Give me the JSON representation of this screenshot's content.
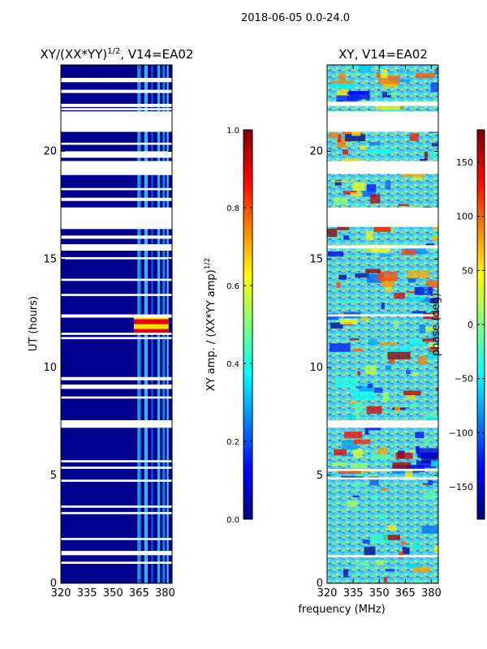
{
  "figure": {
    "suptitle": "2018-06-05 0.0-24.0",
    "xlabel": "frequency (MHz)",
    "ylabel": "UT (hours)"
  },
  "chart_data": [
    {
      "type": "heatmap",
      "title_main": "XY/(XX*YY)",
      "title_sup": "1/2",
      "title_rest": ", V14=EA02",
      "xlim": [
        320,
        384
      ],
      "ylim": [
        0,
        24
      ],
      "xticks": [
        320,
        335,
        350,
        365,
        380
      ],
      "yticks": [
        0,
        5,
        10,
        15,
        20
      ],
      "colorbar": {
        "label_main": "XY amp. / (XX*YY amp)",
        "label_sup": "1/2",
        "range": [
          0.0,
          1.0
        ],
        "ticks": [
          "0.0",
          "0.2",
          "0.4",
          "0.6",
          "0.8",
          "1.0"
        ],
        "tick_values": [
          0.0,
          0.2,
          0.4,
          0.6,
          0.8,
          1.0
        ]
      },
      "gap_bands_hours": [
        [
          23.2,
          23.4
        ],
        [
          22.7,
          22.85
        ],
        [
          22.05,
          22.2
        ],
        [
          21.9,
          22.0
        ],
        [
          20.9,
          21.85
        ],
        [
          20.3,
          20.4
        ],
        [
          19.7,
          20.0
        ],
        [
          18.9,
          19.55
        ],
        [
          18.2,
          18.3
        ],
        [
          17.7,
          17.85
        ],
        [
          16.4,
          17.4
        ],
        [
          15.95,
          16.1
        ],
        [
          15.4,
          15.7
        ],
        [
          15.0,
          15.1
        ],
        [
          14.0,
          14.1
        ],
        [
          13.3,
          13.4
        ],
        [
          12.3,
          12.45
        ],
        [
          11.5,
          11.6
        ],
        [
          11.3,
          11.4
        ],
        [
          9.4,
          9.55
        ],
        [
          9.0,
          9.2
        ],
        [
          8.55,
          8.65
        ],
        [
          7.2,
          7.55
        ],
        [
          5.6,
          5.7
        ],
        [
          5.3,
          5.4
        ],
        [
          4.7,
          4.8
        ],
        [
          3.5,
          3.6
        ],
        [
          3.2,
          3.3
        ],
        [
          2.0,
          2.1
        ],
        [
          1.3,
          1.5
        ],
        [
          0.9,
          1.0
        ]
      ],
      "bright_channel_columns_mhz": [
        [
          364,
          366
        ],
        [
          368,
          370
        ],
        [
          372,
          373
        ],
        [
          375.5,
          377
        ],
        [
          378.5,
          380
        ],
        [
          381,
          382
        ]
      ],
      "high_amplitude_region": {
        "x": [
          362,
          382
        ],
        "y": [
          11.55,
          12.45
        ],
        "value": 0.9
      }
    },
    {
      "type": "heatmap",
      "title": "XY, V14=EA02",
      "xlim": [
        320,
        384
      ],
      "ylim": [
        0,
        24
      ],
      "xticks": [
        320,
        335,
        350,
        365,
        380
      ],
      "yticks": [
        0,
        5,
        10,
        15,
        20
      ],
      "colorbar": {
        "label": "phase (deg)",
        "range": [
          -180,
          180
        ],
        "ticks": [
          "−150",
          "−100",
          "−50",
          "0",
          "50",
          "100",
          "150"
        ],
        "tick_values": [
          -150,
          -100,
          -50,
          0,
          50,
          100,
          150
        ]
      },
      "gap_bands_hours": [
        [
          22.1,
          22.3
        ],
        [
          20.9,
          21.85
        ],
        [
          18.95,
          19.55
        ],
        [
          16.5,
          17.4
        ],
        [
          15.5,
          15.65
        ],
        [
          12.35,
          12.45
        ],
        [
          7.2,
          7.55
        ],
        [
          5.2,
          5.3
        ],
        [
          4.8,
          4.9
        ],
        [
          1.2,
          1.3
        ]
      ]
    }
  ]
}
